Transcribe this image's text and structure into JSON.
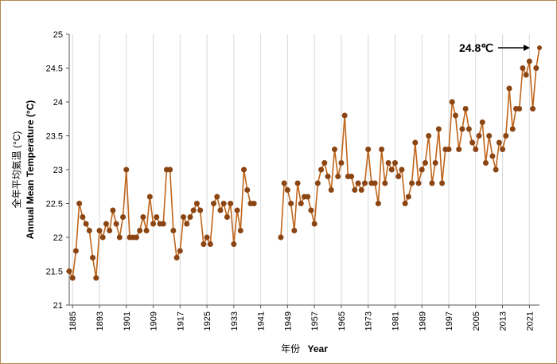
{
  "chart_data": {
    "type": "line",
    "title": "",
    "xlabel": "年份 Year",
    "xlabel_cn": "年份",
    "xlabel_en": "Year",
    "ylabel": "全年平均氣溫 (°C) Annual Mean Temperature (°C)",
    "ylabel_cn": "全年平均氣溫 (°C)",
    "ylabel_en": "Annual Mean Temperature (°C)",
    "xlim": [
      1885,
      2023
    ],
    "ylim": [
      21,
      25
    ],
    "x_ticks": [
      "1885",
      "1893",
      "1901",
      "1909",
      "1917",
      "1925",
      "1933",
      "1941",
      "1949",
      "1957",
      "1965",
      "1973",
      "1981",
      "1989",
      "1997",
      "2005",
      "2013",
      "2021"
    ],
    "y_ticks": [
      "21",
      "21.5",
      "22",
      "22.5",
      "23",
      "23.5",
      "24",
      "24.5",
      "25"
    ],
    "grid": "vertical",
    "series": [
      {
        "name": "Annual Mean Temperature",
        "color": "#c0651a",
        "marker_color": "#8b4513",
        "segments": [
          {
            "x": [
              1884,
              1885,
              1886,
              1887,
              1888,
              1889,
              1890,
              1891,
              1892,
              1893,
              1894,
              1895,
              1896,
              1897,
              1898,
              1899,
              1900,
              1901,
              1902,
              1903,
              1904,
              1905,
              1906,
              1907,
              1908,
              1909,
              1910,
              1911,
              1912,
              1913,
              1914,
              1915,
              1916,
              1917,
              1918,
              1919,
              1920,
              1921,
              1922,
              1923,
              1924,
              1925,
              1926,
              1927,
              1928,
              1929,
              1930,
              1931,
              1932,
              1933,
              1934,
              1935,
              1936,
              1937,
              1938,
              1939
            ],
            "y": [
              21.5,
              21.4,
              21.8,
              22.5,
              22.3,
              22.2,
              22.1,
              21.7,
              21.4,
              22.1,
              22.0,
              22.2,
              22.1,
              22.4,
              22.2,
              22.0,
              22.3,
              23.0,
              22.0,
              22.0,
              22.0,
              22.1,
              22.3,
              22.1,
              22.6,
              22.2,
              22.3,
              22.2,
              22.2,
              23.0,
              23.0,
              22.1,
              21.7,
              21.8,
              22.3,
              22.2,
              22.3,
              22.4,
              22.5,
              22.4,
              21.9,
              22.0,
              21.9,
              22.5,
              22.6,
              22.4,
              22.5,
              22.3,
              22.5,
              21.9,
              22.4,
              22.1,
              23.0,
              22.7,
              22.5,
              22.5
            ]
          },
          {
            "x": [
              1947,
              1948,
              1949,
              1950,
              1951,
              1952,
              1953,
              1954,
              1955,
              1956,
              1957,
              1958,
              1959,
              1960,
              1961,
              1962,
              1963,
              1964,
              1965,
              1966,
              1967,
              1968,
              1969,
              1970,
              1971,
              1972,
              1973,
              1974,
              1975,
              1976,
              1977,
              1978,
              1979,
              1980,
              1981,
              1982,
              1983,
              1984,
              1985,
              1986,
              1987,
              1988,
              1989,
              1990,
              1991,
              1992,
              1993,
              1994,
              1995,
              1996,
              1997,
              1998,
              1999,
              2000,
              2001,
              2002,
              2003,
              2004,
              2005,
              2006,
              2007,
              2008,
              2009,
              2010,
              2011,
              2012,
              2013,
              2014,
              2015,
              2016,
              2017,
              2018,
              2019,
              2020,
              2021,
              2022,
              2023
            ],
            "y": [
              22.0,
              22.8,
              22.7,
              22.5,
              22.1,
              22.8,
              22.5,
              22.6,
              22.6,
              22.4,
              22.2,
              22.8,
              23.0,
              23.1,
              22.9,
              22.7,
              23.3,
              22.9,
              23.1,
              23.8,
              22.9,
              22.9,
              22.7,
              22.8,
              22.7,
              22.8,
              23.3,
              22.8,
              22.8,
              22.5,
              23.3,
              22.8,
              23.1,
              23.0,
              23.1,
              22.9,
              23.0,
              22.5,
              22.6,
              22.8,
              23.4,
              22.8,
              23.0,
              23.1,
              23.5,
              22.8,
              23.1,
              23.6,
              22.8,
              23.3,
              23.3,
              24.0,
              23.8,
              23.3,
              23.6,
              23.9,
              23.6,
              23.4,
              23.3,
              23.5,
              23.7,
              23.1,
              23.5,
              23.2,
              23.0,
              23.4,
              23.3,
              23.5,
              24.2,
              23.6,
              23.9,
              23.9,
              24.5,
              24.4,
              24.6,
              23.9,
              24.5
            ]
          }
        ],
        "last_point": {
          "x": 2024,
          "y": 24.8
        }
      }
    ],
    "annotations": [
      {
        "text": "24.8℃",
        "points_to": {
          "x": 2024,
          "y": 24.8
        }
      }
    ]
  }
}
